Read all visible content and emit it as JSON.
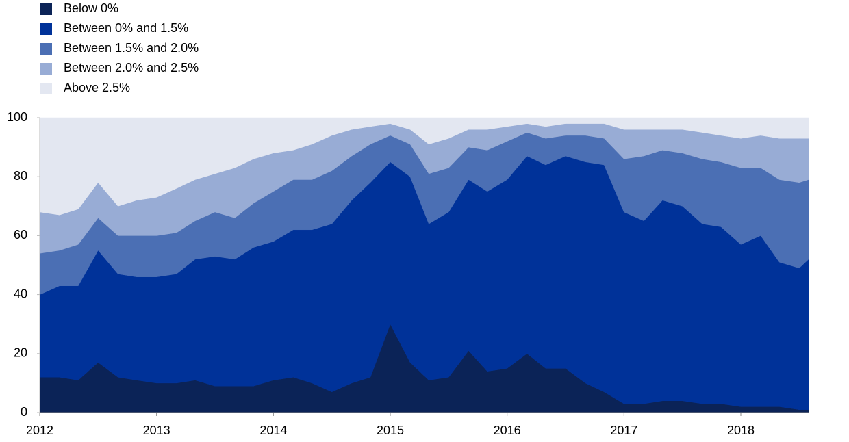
{
  "chart_data": {
    "type": "stacked_area",
    "x": [
      2012,
      2012.17,
      2012.33,
      2012.5,
      2012.67,
      2012.83,
      2013,
      2013.17,
      2013.33,
      2013.5,
      2013.67,
      2013.83,
      2014,
      2014.17,
      2014.33,
      2014.5,
      2014.67,
      2014.83,
      2015,
      2015.17,
      2015.33,
      2015.5,
      2015.67,
      2015.83,
      2016,
      2016.17,
      2016.33,
      2016.5,
      2016.67,
      2016.83,
      2017,
      2017.17,
      2017.33,
      2017.5,
      2017.67,
      2017.83,
      2018,
      2018.17,
      2018.33,
      2018.5,
      2018.58
    ],
    "series": [
      {
        "name": "Below 0%",
        "color": "#0b2357",
        "values": [
          12,
          12,
          11,
          17,
          12,
          11,
          10,
          10,
          11,
          9,
          9,
          9,
          11,
          12,
          10,
          7,
          10,
          12,
          30,
          17,
          11,
          12,
          21,
          14,
          15,
          20,
          15,
          15,
          10,
          7,
          3,
          3,
          4,
          4,
          3,
          3,
          2,
          2,
          2,
          1,
          1
        ]
      },
      {
        "name": "Between 0% and 1.5%",
        "color": "#003299",
        "values": [
          28,
          31,
          32,
          38,
          35,
          35,
          36,
          37,
          41,
          44,
          43,
          47,
          47,
          50,
          52,
          57,
          62,
          66,
          55,
          63,
          53,
          56,
          58,
          61,
          64,
          67,
          69,
          72,
          75,
          77,
          65,
          62,
          68,
          66,
          61,
          60,
          55,
          58,
          49,
          48,
          51
        ]
      },
      {
        "name": "Between 1.5% and 2.0%",
        "color": "#4b6fb4",
        "values": [
          14,
          12,
          14,
          11,
          13,
          14,
          14,
          14,
          13,
          15,
          14,
          15,
          17,
          17,
          17,
          18,
          15,
          13,
          9,
          11,
          17,
          15,
          11,
          14,
          13,
          8,
          9,
          7,
          9,
          9,
          18,
          22,
          17,
          18,
          22,
          22,
          26,
          23,
          28,
          29,
          27
        ]
      },
      {
        "name": "Between 2.0% and 2.5%",
        "color": "#98acd5",
        "values": [
          14,
          12,
          12,
          12,
          10,
          12,
          13,
          15,
          14,
          13,
          17,
          15,
          13,
          10,
          12,
          12,
          9,
          6,
          4,
          5,
          10,
          10,
          6,
          7,
          5,
          3,
          4,
          4,
          4,
          5,
          10,
          9,
          7,
          8,
          9,
          9,
          10,
          11,
          14,
          15,
          14
        ]
      },
      {
        "name": "Above 2.5%",
        "color": "#e3e7f1",
        "values": [
          32,
          33,
          31,
          22,
          30,
          28,
          27,
          24,
          21,
          19,
          17,
          14,
          12,
          11,
          9,
          6,
          4,
          3,
          2,
          4,
          9,
          7,
          4,
          4,
          3,
          2,
          3,
          2,
          2,
          2,
          4,
          4,
          4,
          4,
          5,
          6,
          7,
          6,
          7,
          7,
          7
        ]
      }
    ],
    "xlim": [
      2012,
      2018.58
    ],
    "xticks": [
      2012,
      2013,
      2014,
      2015,
      2016,
      2017,
      2018
    ],
    "ylim": [
      0,
      100
    ],
    "yticks": [
      0,
      20,
      40,
      60,
      80,
      100
    ]
  }
}
